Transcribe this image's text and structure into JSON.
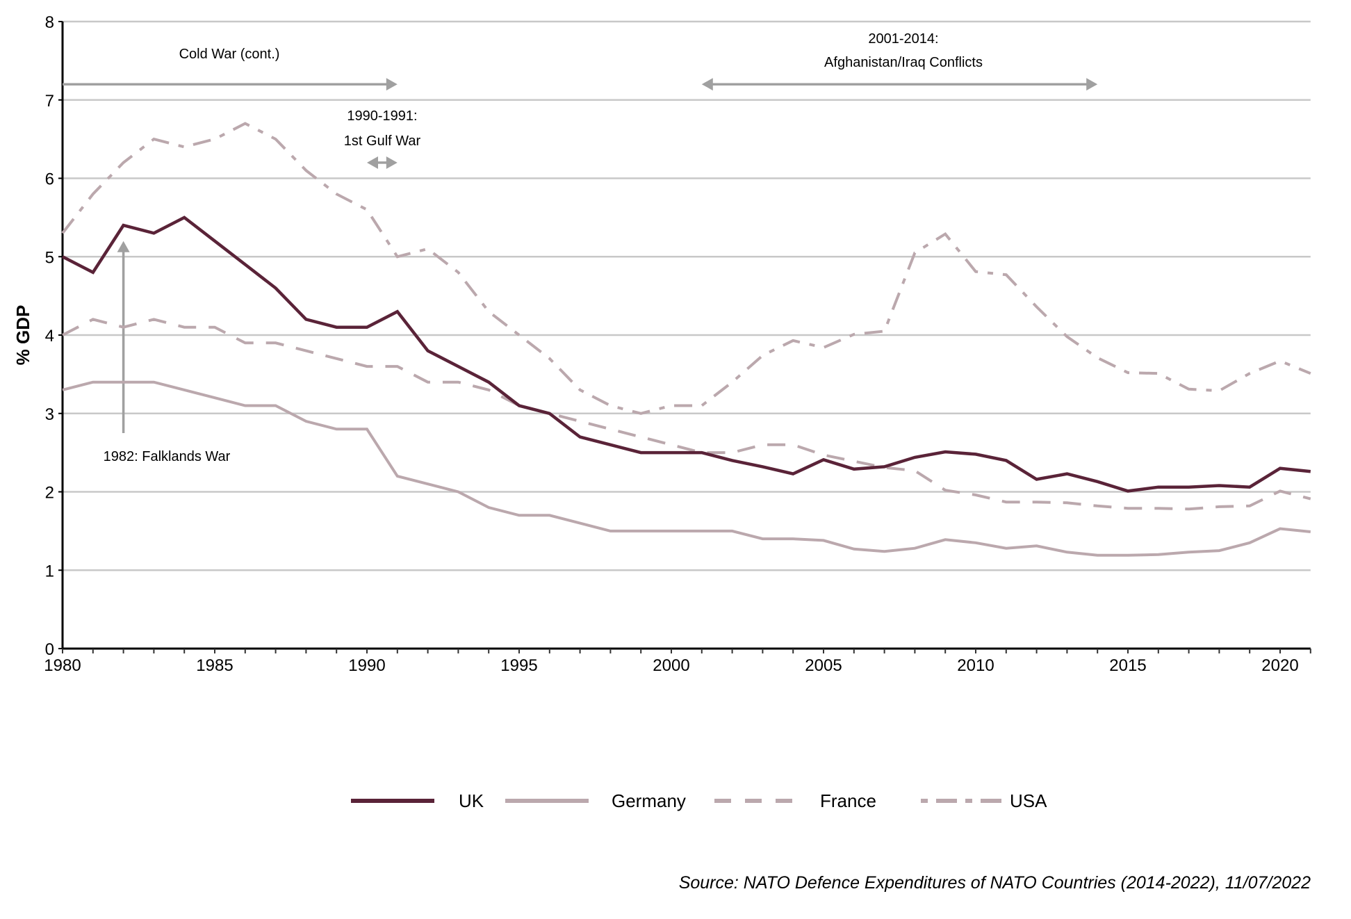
{
  "chart_data": {
    "type": "line",
    "title": "",
    "xlabel": "",
    "ylabel": "% GDP",
    "xlim": [
      1980,
      2021
    ],
    "ylim": [
      0,
      8
    ],
    "grid": true,
    "x_ticks": [
      "1980",
      "1985",
      "1990",
      "1995",
      "2000",
      "2005",
      "2010",
      "2015",
      "2020"
    ],
    "y_ticks": [
      "0",
      "1",
      "2",
      "3",
      "4",
      "5",
      "6",
      "7",
      "8"
    ],
    "x": [
      1980,
      1981,
      1982,
      1983,
      1984,
      1985,
      1986,
      1987,
      1988,
      1989,
      1990,
      1991,
      1992,
      1993,
      1994,
      1995,
      1996,
      1997,
      1998,
      1999,
      2000,
      2001,
      2002,
      2003,
      2004,
      2005,
      2006,
      2007,
      2008,
      2009,
      2010,
      2011,
      2012,
      2013,
      2014,
      2015,
      2016,
      2017,
      2018,
      2019,
      2020,
      2021
    ],
    "series": [
      {
        "name": "UK",
        "color": "#5a2338",
        "style": "solid",
        "values": [
          5.0,
          4.8,
          5.4,
          5.3,
          5.5,
          5.2,
          4.9,
          4.6,
          4.2,
          4.1,
          4.1,
          4.3,
          3.8,
          3.6,
          3.4,
          3.1,
          3.0,
          2.7,
          2.6,
          2.5,
          2.5,
          2.5,
          2.4,
          2.32,
          2.23,
          2.41,
          2.29,
          2.32,
          2.44,
          2.51,
          2.48,
          2.4,
          2.16,
          2.23,
          2.13,
          2.01,
          2.06,
          2.06,
          2.08,
          2.06,
          2.3,
          2.26
        ]
      },
      {
        "name": "Germany",
        "color": "#bba8ad",
        "style": "solid",
        "values": [
          3.3,
          3.4,
          3.4,
          3.4,
          3.3,
          3.2,
          3.1,
          3.1,
          2.9,
          2.8,
          2.8,
          2.2,
          2.1,
          2.0,
          1.8,
          1.7,
          1.7,
          1.6,
          1.5,
          1.5,
          1.5,
          1.5,
          1.5,
          1.4,
          1.4,
          1.38,
          1.27,
          1.24,
          1.28,
          1.39,
          1.35,
          1.28,
          1.31,
          1.23,
          1.19,
          1.19,
          1.2,
          1.23,
          1.25,
          1.35,
          1.53,
          1.49
        ]
      },
      {
        "name": "France",
        "color": "#bba8ad",
        "style": "dashed",
        "values": [
          4.0,
          4.2,
          4.1,
          4.2,
          4.1,
          4.1,
          3.9,
          3.9,
          3.8,
          3.7,
          3.6,
          3.6,
          3.4,
          3.4,
          3.3,
          3.1,
          3.0,
          2.9,
          2.8,
          2.7,
          2.6,
          2.5,
          2.5,
          2.6,
          2.6,
          2.47,
          2.39,
          2.31,
          2.27,
          2.02,
          1.96,
          1.87,
          1.87,
          1.86,
          1.82,
          1.79,
          1.79,
          1.78,
          1.81,
          1.82,
          2.01,
          1.91
        ]
      },
      {
        "name": "USA",
        "color": "#bba8ad",
        "style": "dash-dot",
        "values": [
          5.3,
          5.8,
          6.2,
          6.5,
          6.4,
          6.5,
          6.7,
          6.5,
          6.1,
          5.8,
          5.6,
          5.0,
          5.1,
          4.8,
          4.3,
          4.0,
          3.7,
          3.3,
          3.1,
          3.0,
          3.1,
          3.1,
          3.4,
          3.74,
          3.93,
          3.84,
          4.01,
          4.05,
          5.05,
          5.29,
          4.81,
          4.77,
          4.36,
          3.98,
          3.71,
          3.52,
          3.51,
          3.31,
          3.29,
          3.51,
          3.67,
          3.51
        ]
      }
    ],
    "annotations": [
      {
        "id": "cold-war",
        "lines": [
          "Cold War (cont.)"
        ],
        "arrow": "right",
        "from_x": 1980,
        "to_x": 1991,
        "at_y": 7.2
      },
      {
        "id": "gulf-war",
        "lines": [
          "1990-1991:",
          "1st Gulf War"
        ],
        "arrow": "both",
        "from_x": 1990,
        "to_x": 1991,
        "at_y": 6.2
      },
      {
        "id": "afghan-iraq",
        "lines": [
          "2001-2014:",
          "Afghanistan/Iraq Conflicts"
        ],
        "arrow": "both",
        "from_x": 2001,
        "to_x": 2014,
        "at_y": 7.2
      },
      {
        "id": "falklands",
        "lines": [
          "1982: Falklands War"
        ],
        "arrow": "up",
        "at_x": 1982,
        "from_y": 2.75,
        "to_y": 5.2
      }
    ],
    "legend_position": "bottom-center",
    "source": "Source: NATO Defence Expenditures of NATO Countries (2014-2022), 11/07/2022",
    "colors": {
      "grid": "#c8c8c8",
      "axis": "#000000",
      "annotation_arrow": "#a0a0a0"
    }
  }
}
